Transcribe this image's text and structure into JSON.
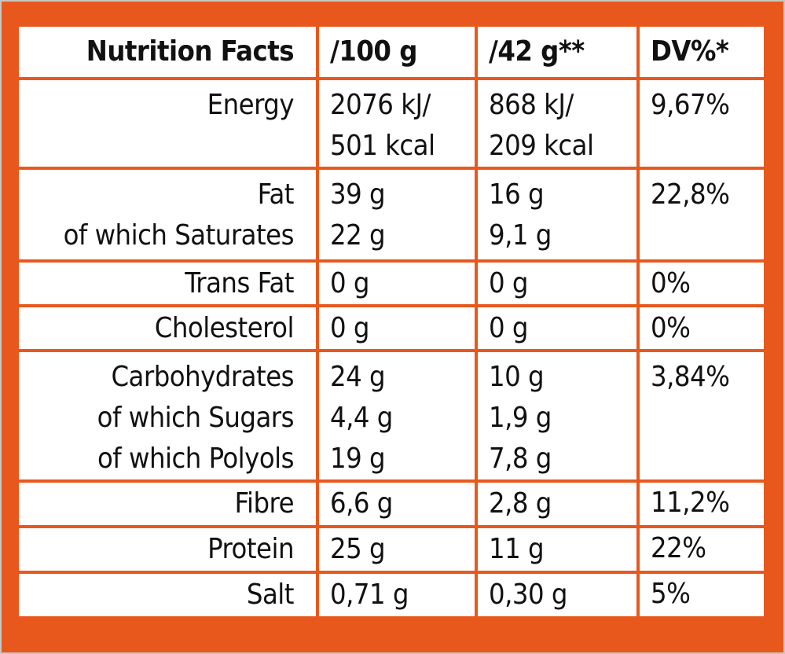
{
  "headers": {
    "label": "Nutrition Facts",
    "per100": "/100 g",
    "perServing": "/42 g**",
    "dv": "DV%*"
  },
  "rows": [
    {
      "label": [
        "Energy"
      ],
      "per100": [
        "2076 kJ/",
        "501 kcal"
      ],
      "perServing": [
        "868 kJ/",
        "209 kcal"
      ],
      "dv": "9,67%"
    },
    {
      "label": [
        "Fat",
        "of which Saturates"
      ],
      "per100": [
        "39 g",
        "22 g"
      ],
      "perServing": [
        "16 g",
        "9,1 g"
      ],
      "dv": "22,8%"
    },
    {
      "label": [
        "Trans Fat"
      ],
      "per100": [
        "0 g"
      ],
      "perServing": [
        "0 g"
      ],
      "dv": "0%"
    },
    {
      "label": [
        "Cholesterol"
      ],
      "per100": [
        "0 g"
      ],
      "perServing": [
        "0 g"
      ],
      "dv": "0%"
    },
    {
      "label": [
        "Carbohydrates",
        "of which Sugars",
        "of which Polyols"
      ],
      "per100": [
        "24 g",
        "4,4 g",
        "19 g"
      ],
      "perServing": [
        "10 g",
        "1,9 g",
        "7,8 g"
      ],
      "dv": "3,84%"
    },
    {
      "label": [
        "Fibre"
      ],
      "per100": [
        "6,6 g"
      ],
      "perServing": [
        "2,8 g"
      ],
      "dv": "11,2%"
    },
    {
      "label": [
        "Protein"
      ],
      "per100": [
        "25 g"
      ],
      "perServing": [
        "11 g"
      ],
      "dv": "22%"
    },
    {
      "label": [
        "Salt"
      ],
      "per100": [
        "0,71 g"
      ],
      "perServing": [
        "0,30 g"
      ],
      "dv": "5%"
    }
  ],
  "colors": {
    "border": "#e8581d",
    "text": "#111111",
    "background": "#ffffff"
  }
}
